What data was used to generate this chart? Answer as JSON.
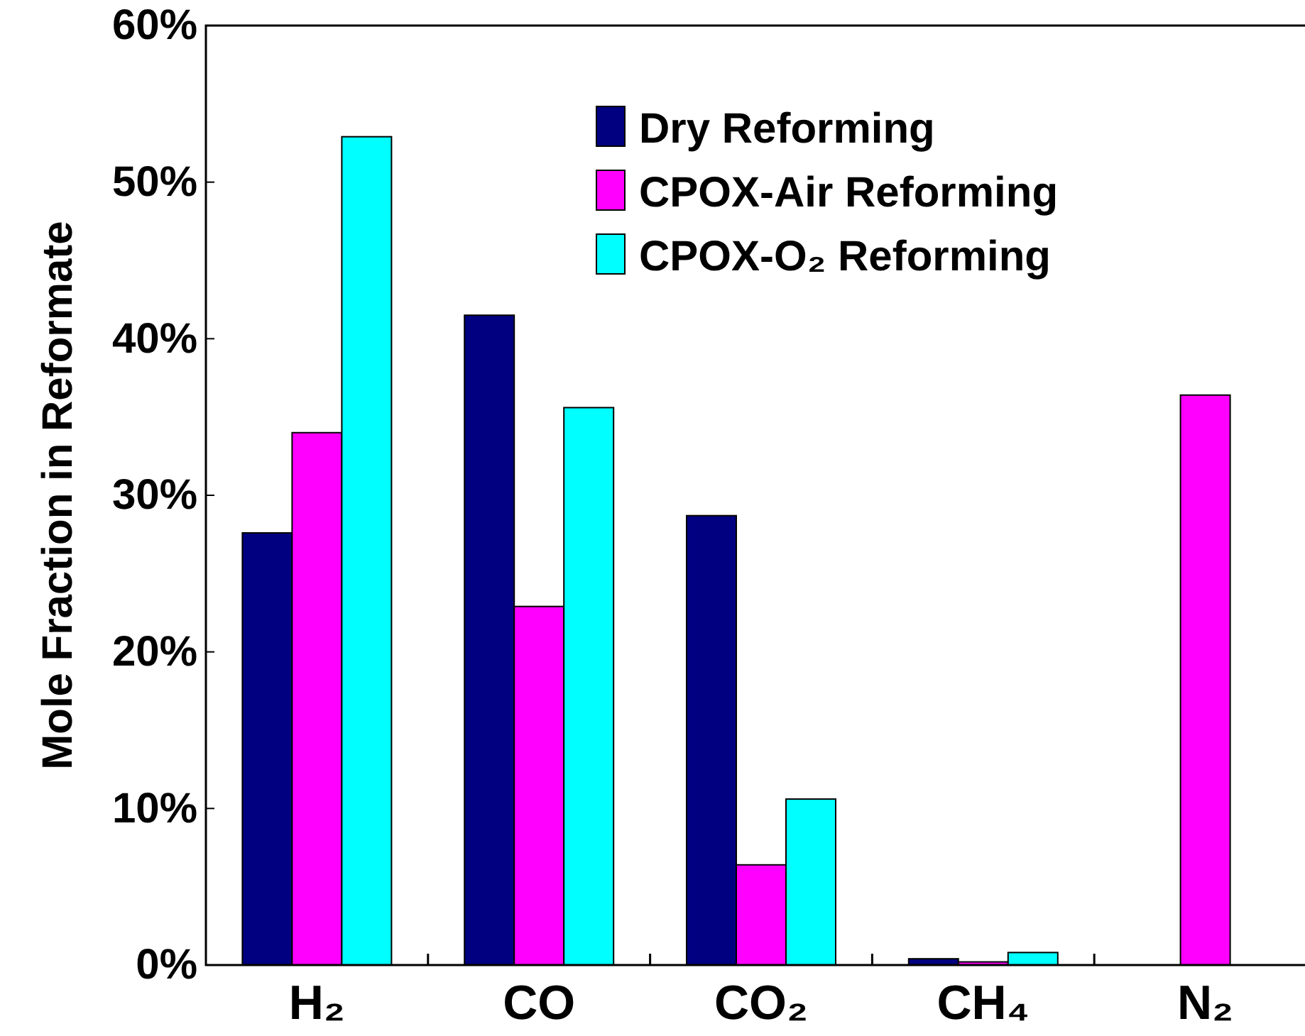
{
  "chart_data": {
    "type": "bar",
    "ylabel": "Mole Fraction in Reformate",
    "categories": [
      "H₂",
      "CO",
      "CO₂",
      "CH₄",
      "N₂"
    ],
    "series": [
      {
        "name": "Dry Reforming",
        "color": "#000080",
        "values": [
          27.6,
          41.5,
          28.7,
          0.4,
          null
        ]
      },
      {
        "name": "CPOX-Air Reforming",
        "color": "#ff00ff",
        "values": [
          34.0,
          22.9,
          6.4,
          0.2,
          36.4
        ]
      },
      {
        "name": "CPOX-O₂ Reforming",
        "color": "#00ffff",
        "values": [
          52.9,
          35.6,
          10.6,
          0.8,
          null
        ]
      }
    ],
    "ylim": [
      0,
      60
    ],
    "yticks": [
      {
        "value": 0,
        "label": "0%"
      },
      {
        "value": 10,
        "label": "10%"
      },
      {
        "value": 20,
        "label": "20%"
      },
      {
        "value": 30,
        "label": "30%"
      },
      {
        "value": 40,
        "label": "40%"
      },
      {
        "value": 50,
        "label": "50%"
      },
      {
        "value": 60,
        "label": "60%"
      }
    ],
    "legend": "top right",
    "grid": false
  }
}
